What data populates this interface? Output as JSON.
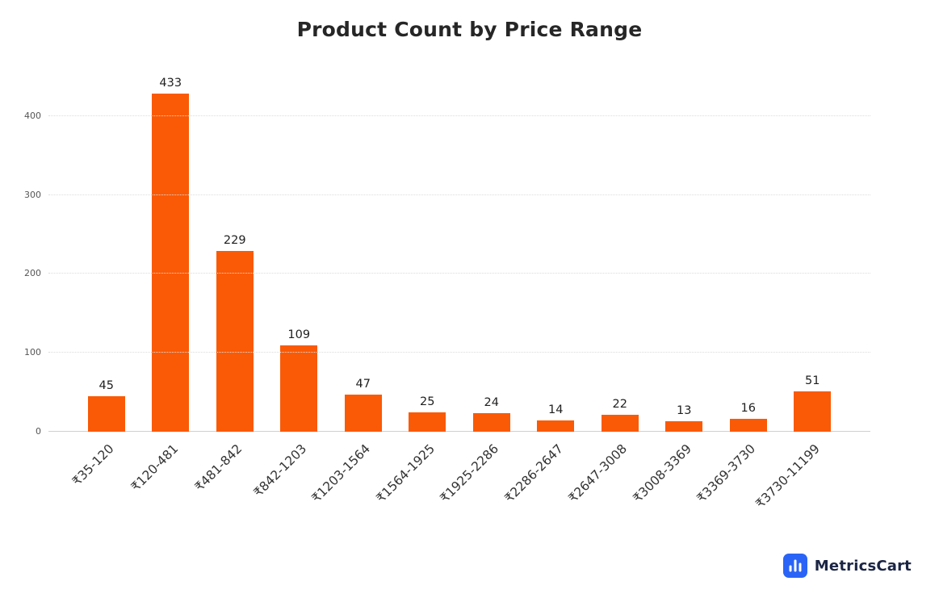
{
  "title": "Product Count by Price Range",
  "chart_data": {
    "type": "bar",
    "title": "Product Count by Price Range",
    "categories": [
      "₹35-120",
      "₹120-481",
      "₹481-842",
      "₹842-1203",
      "₹1203-1564",
      "₹1564-1925",
      "₹1925-2286",
      "₹2286-2647",
      "₹2647-3008",
      "₹3008-3369",
      "₹3369-3730",
      "₹3730-11199"
    ],
    "values": [
      45,
      433,
      229,
      109,
      47,
      25,
      24,
      14,
      22,
      13,
      16,
      51
    ],
    "xlabel": "",
    "ylabel": "",
    "ylim": [
      0,
      450
    ],
    "yticks": [
      0,
      100,
      200,
      300,
      400
    ],
    "grid": "horizontal-dotted",
    "legend": "none",
    "data_labels": true,
    "bar_color": "#fa5a05"
  },
  "colors": {
    "bar": "#fa5a05",
    "title": "#262626",
    "axis_text": "#555555",
    "grid": "#dcdcdc",
    "logo_blue": "#2a64f6",
    "logo_text": "#1b2544"
  },
  "branding": {
    "name": "MetricsCart",
    "icon": "bar-chart-icon"
  }
}
